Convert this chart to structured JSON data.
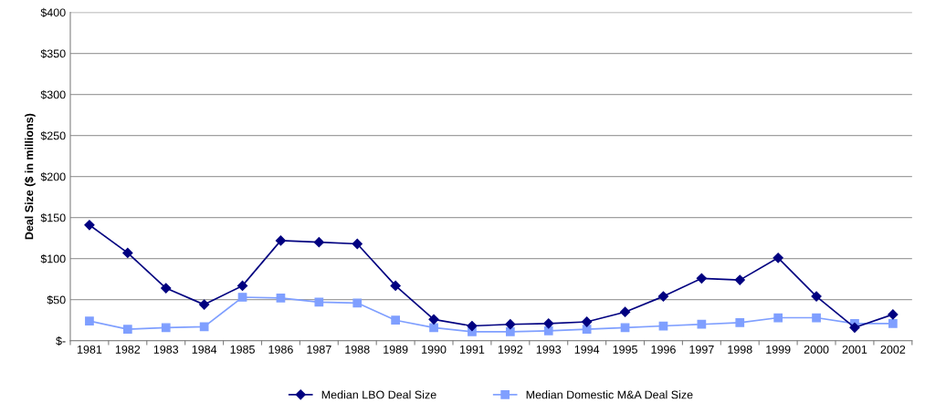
{
  "chart_data": {
    "type": "line",
    "ylabel": "Deal Size ($ in millions)",
    "categories": [
      "1981",
      "1982",
      "1983",
      "1984",
      "1985",
      "1986",
      "1987",
      "1988",
      "1989",
      "1990",
      "1991",
      "1992",
      "1993",
      "1994",
      "1995",
      "1996",
      "1997",
      "1998",
      "1999",
      "2000",
      "2001",
      "2002"
    ],
    "series": [
      {
        "name": "Median LBO Deal Size",
        "color": "#000080",
        "marker": "diamond",
        "values": [
          141,
          107,
          64,
          44,
          67,
          122,
          120,
          118,
          67,
          26,
          18,
          20,
          21,
          23,
          35,
          54,
          76,
          74,
          101,
          54,
          16,
          32
        ]
      },
      {
        "name": "Median Domestic M&A Deal Size",
        "color": "#7f9fff",
        "marker": "square",
        "values": [
          24,
          14,
          16,
          17,
          53,
          52,
          47,
          46,
          25,
          16,
          11,
          11,
          12,
          14,
          16,
          18,
          20,
          22,
          28,
          28,
          21,
          21
        ]
      }
    ],
    "ylim": [
      0,
      400
    ],
    "yticks": [
      {
        "value": 0,
        "label": "$-"
      },
      {
        "value": 50,
        "label": "$50"
      },
      {
        "value": 100,
        "label": "$100"
      },
      {
        "value": 150,
        "label": "$150"
      },
      {
        "value": 200,
        "label": "$200"
      },
      {
        "value": 250,
        "label": "$250"
      },
      {
        "value": 300,
        "label": "$300"
      },
      {
        "value": 350,
        "label": "$350"
      },
      {
        "value": 400,
        "label": "$400"
      }
    ],
    "grid": "y",
    "legend": "bottom",
    "line_style": "solid"
  }
}
